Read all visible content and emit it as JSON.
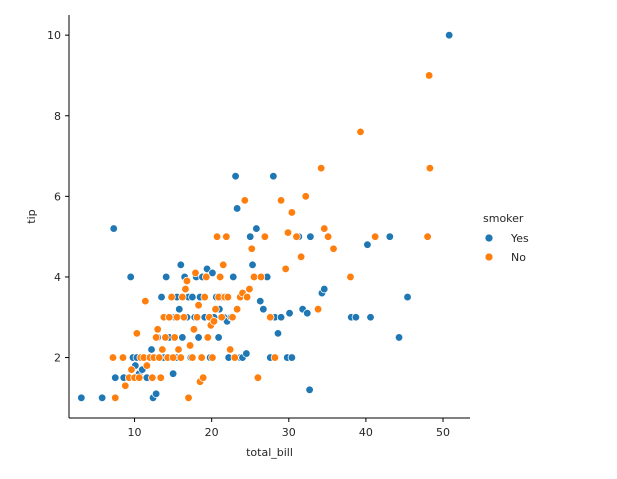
{
  "chart_data": {
    "type": "scatter",
    "title": "",
    "xlabel": "total_bill",
    "ylabel": "tip",
    "xlim": [
      1.5,
      53.5
    ],
    "ylim": [
      0.5,
      10.5
    ],
    "xticks": [
      10,
      20,
      30,
      40,
      50
    ],
    "yticks": [
      2,
      4,
      6,
      8,
      10
    ],
    "grid": false,
    "legend": {
      "title": "smoker",
      "placement": "right"
    },
    "series": [
      {
        "name": "Yes",
        "color": "#1f77b4",
        "points": [
          [
            3.1,
            1.0
          ],
          [
            5.8,
            1.0
          ],
          [
            7.3,
            5.2
          ],
          [
            7.5,
            1.5
          ],
          [
            8.6,
            1.5
          ],
          [
            9.5,
            4.0
          ],
          [
            9.8,
            2.0
          ],
          [
            10.1,
            1.8
          ],
          [
            10.3,
            2.0
          ],
          [
            10.6,
            1.6
          ],
          [
            11.0,
            1.7
          ],
          [
            11.3,
            2.0
          ],
          [
            11.6,
            1.5
          ],
          [
            11.9,
            2.0
          ],
          [
            12.2,
            2.2
          ],
          [
            12.4,
            1.0
          ],
          [
            12.6,
            2.0
          ],
          [
            12.8,
            1.1
          ],
          [
            13.0,
            2.5
          ],
          [
            13.3,
            2.0
          ],
          [
            13.5,
            3.5
          ],
          [
            13.8,
            2.0
          ],
          [
            14.1,
            4.0
          ],
          [
            14.3,
            2.0
          ],
          [
            14.5,
            2.5
          ],
          [
            14.8,
            2.0
          ],
          [
            15.0,
            1.6
          ],
          [
            15.2,
            3.0
          ],
          [
            15.4,
            2.0
          ],
          [
            15.5,
            3.5
          ],
          [
            15.8,
            3.2
          ],
          [
            16.0,
            4.3
          ],
          [
            16.2,
            2.5
          ],
          [
            16.5,
            4.0
          ],
          [
            16.8,
            3.0
          ],
          [
            17.0,
            3.5
          ],
          [
            17.3,
            2.0
          ],
          [
            17.5,
            3.5
          ],
          [
            17.8,
            3.0
          ],
          [
            18.0,
            4.0
          ],
          [
            18.3,
            2.5
          ],
          [
            18.5,
            3.5
          ],
          [
            18.8,
            4.0
          ],
          [
            19.1,
            3.0
          ],
          [
            19.4,
            4.2
          ],
          [
            19.8,
            2.0
          ],
          [
            20.1,
            4.1
          ],
          [
            20.3,
            3.0
          ],
          [
            20.6,
            3.5
          ],
          [
            20.9,
            2.5
          ],
          [
            21.0,
            3.2
          ],
          [
            21.3,
            3.5
          ],
          [
            21.6,
            3.0
          ],
          [
            22.0,
            2.9
          ],
          [
            22.2,
            2.0
          ],
          [
            22.5,
            3.0
          ],
          [
            22.8,
            4.0
          ],
          [
            23.1,
            6.5
          ],
          [
            23.3,
            5.7
          ],
          [
            23.7,
            2.0
          ],
          [
            24.0,
            2.0
          ],
          [
            24.5,
            2.1
          ],
          [
            25.0,
            5.0
          ],
          [
            25.3,
            4.3
          ],
          [
            25.8,
            5.2
          ],
          [
            26.3,
            3.4
          ],
          [
            26.7,
            3.2
          ],
          [
            27.2,
            4.0
          ],
          [
            27.6,
            2.0
          ],
          [
            28.0,
            6.5
          ],
          [
            28.2,
            3.0
          ],
          [
            28.6,
            2.6
          ],
          [
            29.0,
            3.0
          ],
          [
            29.8,
            2.0
          ],
          [
            30.1,
            3.1
          ],
          [
            30.4,
            2.0
          ],
          [
            31.3,
            5.0
          ],
          [
            31.8,
            3.2
          ],
          [
            32.4,
            3.1
          ],
          [
            32.7,
            1.2
          ],
          [
            32.8,
            5.0
          ],
          [
            34.3,
            3.6
          ],
          [
            34.6,
            3.7
          ],
          [
            38.1,
            3.0
          ],
          [
            38.7,
            3.0
          ],
          [
            40.2,
            4.8
          ],
          [
            40.6,
            3.0
          ],
          [
            43.1,
            5.0
          ],
          [
            44.3,
            2.5
          ],
          [
            45.4,
            3.5
          ],
          [
            50.8,
            10.0
          ]
        ]
      },
      {
        "name": "No",
        "color": "#ff7f0e",
        "points": [
          [
            7.2,
            2.0
          ],
          [
            7.5,
            1.0
          ],
          [
            8.5,
            2.0
          ],
          [
            8.8,
            1.3
          ],
          [
            9.3,
            1.5
          ],
          [
            9.6,
            1.7
          ],
          [
            10.0,
            1.5
          ],
          [
            10.3,
            2.6
          ],
          [
            10.6,
            1.5
          ],
          [
            10.8,
            2.0
          ],
          [
            11.2,
            2.0
          ],
          [
            11.4,
            3.4
          ],
          [
            11.6,
            1.8
          ],
          [
            12.0,
            2.0
          ],
          [
            12.3,
            1.5
          ],
          [
            12.5,
            2.0
          ],
          [
            12.8,
            2.5
          ],
          [
            13.0,
            2.7
          ],
          [
            13.2,
            2.0
          ],
          [
            13.4,
            1.5
          ],
          [
            13.6,
            2.2
          ],
          [
            13.8,
            3.0
          ],
          [
            14.0,
            2.5
          ],
          [
            14.3,
            2.0
          ],
          [
            14.5,
            3.0
          ],
          [
            14.8,
            3.5
          ],
          [
            15.0,
            2.0
          ],
          [
            15.2,
            2.5
          ],
          [
            15.5,
            3.0
          ],
          [
            15.7,
            2.2
          ],
          [
            16.0,
            2.0
          ],
          [
            16.2,
            3.5
          ],
          [
            16.4,
            3.0
          ],
          [
            16.6,
            3.7
          ],
          [
            16.8,
            3.9
          ],
          [
            17.0,
            1.0
          ],
          [
            17.2,
            2.3
          ],
          [
            17.5,
            2.0
          ],
          [
            17.7,
            2.7
          ],
          [
            17.9,
            4.1
          ],
          [
            18.1,
            3.0
          ],
          [
            18.3,
            3.3
          ],
          [
            18.5,
            1.4
          ],
          [
            18.7,
            2.0
          ],
          [
            18.9,
            1.5
          ],
          [
            19.1,
            3.5
          ],
          [
            19.3,
            4.0
          ],
          [
            19.5,
            2.5
          ],
          [
            19.7,
            3.0
          ],
          [
            19.9,
            2.8
          ],
          [
            20.1,
            2.0
          ],
          [
            20.3,
            2.9
          ],
          [
            20.5,
            3.2
          ],
          [
            20.7,
            5.0
          ],
          [
            20.9,
            3.5
          ],
          [
            21.1,
            4.0
          ],
          [
            21.3,
            3.0
          ],
          [
            21.5,
            4.3
          ],
          [
            21.7,
            3.5
          ],
          [
            21.9,
            5.0
          ],
          [
            22.1,
            3.5
          ],
          [
            22.4,
            2.2
          ],
          [
            22.7,
            3.0
          ],
          [
            23.0,
            2.0
          ],
          [
            23.3,
            3.2
          ],
          [
            23.7,
            3.5
          ],
          [
            24.0,
            3.6
          ],
          [
            24.3,
            5.9
          ],
          [
            24.6,
            3.5
          ],
          [
            24.9,
            3.7
          ],
          [
            25.2,
            4.7
          ],
          [
            25.5,
            4.0
          ],
          [
            26.0,
            1.5
          ],
          [
            26.4,
            4.0
          ],
          [
            26.9,
            5.0
          ],
          [
            27.6,
            3.0
          ],
          [
            28.2,
            2.0
          ],
          [
            29.0,
            5.9
          ],
          [
            29.6,
            4.2
          ],
          [
            29.9,
            5.1
          ],
          [
            30.4,
            5.6
          ],
          [
            31.0,
            5.0
          ],
          [
            31.6,
            4.5
          ],
          [
            32.2,
            6.0
          ],
          [
            33.8,
            3.2
          ],
          [
            34.2,
            6.7
          ],
          [
            34.6,
            5.2
          ],
          [
            35.1,
            5.0
          ],
          [
            35.8,
            4.7
          ],
          [
            38.0,
            4.0
          ],
          [
            39.3,
            7.6
          ],
          [
            41.2,
            5.0
          ],
          [
            48.0,
            5.0
          ],
          [
            48.2,
            9.0
          ],
          [
            48.3,
            6.7
          ]
        ]
      }
    ]
  }
}
